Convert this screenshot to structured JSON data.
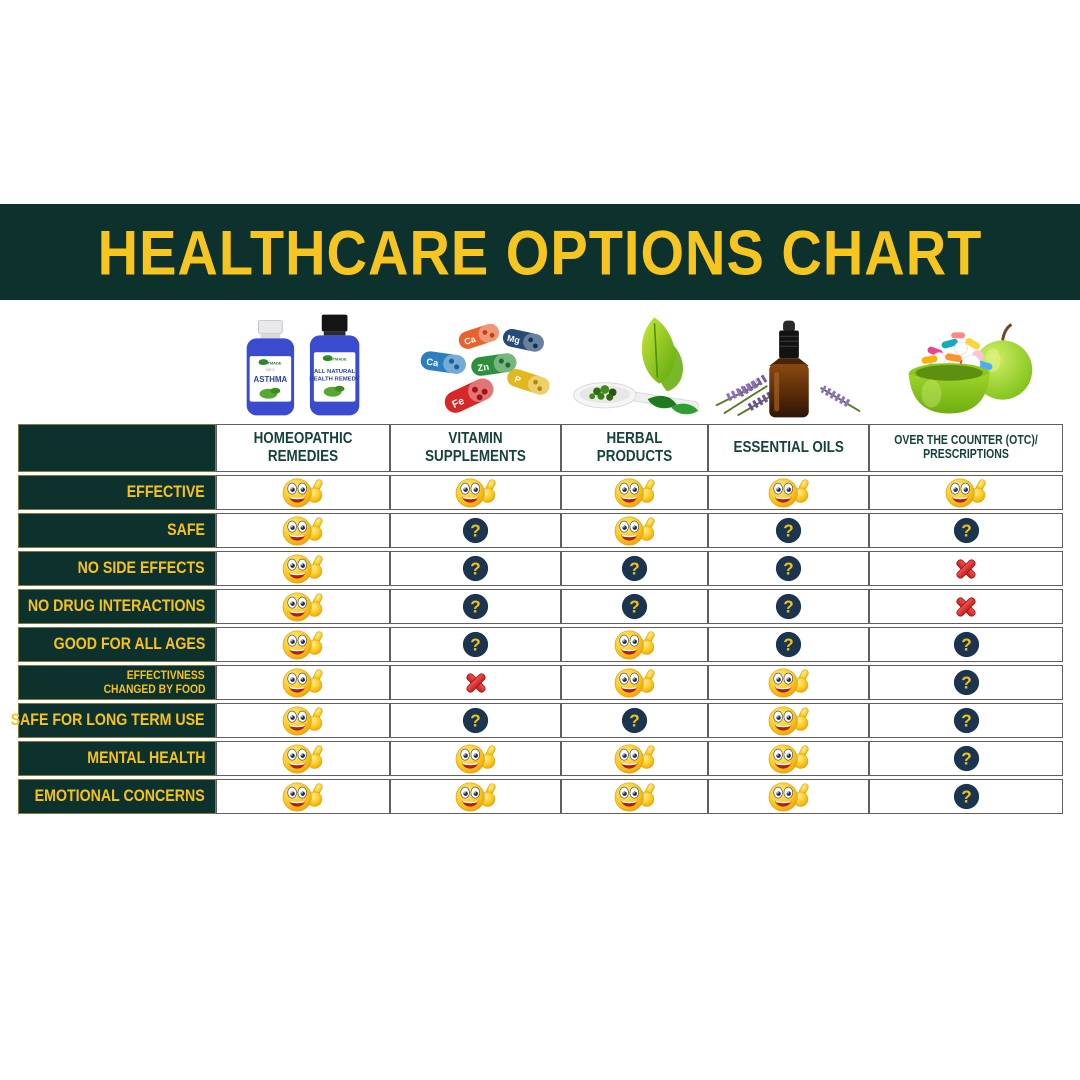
{
  "chart_data": {
    "type": "table",
    "title": "HEALTHCARE OPTIONS CHART",
    "columns": [
      {
        "key": "homeopathic-remedies",
        "label": "HOMEOPATHIC REMEDIES"
      },
      {
        "key": "vitamin-supplements",
        "label": "VITAMIN SUPPLEMENTS"
      },
      {
        "key": "herbal-products",
        "label": "HERBAL PRODUCTS"
      },
      {
        "key": "essential-oils",
        "label": "ESSENTIAL OILS"
      },
      {
        "key": "otc-prescriptions",
        "label": "OVER THE COUNTER (OTC)/ PRESCRIPTIONS"
      }
    ],
    "rows": [
      {
        "label": "EFFECTIVE",
        "values": [
          "yes",
          "yes",
          "yes",
          "yes",
          "yes"
        ]
      },
      {
        "label": "SAFE",
        "values": [
          "yes",
          "unknown",
          "yes",
          "unknown",
          "unknown"
        ]
      },
      {
        "label": "NO SIDE EFFECTS",
        "values": [
          "yes",
          "unknown",
          "unknown",
          "unknown",
          "no"
        ]
      },
      {
        "label": "NO DRUG INTERACTIONS",
        "values": [
          "yes",
          "unknown",
          "unknown",
          "unknown",
          "no"
        ]
      },
      {
        "label": "GOOD FOR ALL AGES",
        "values": [
          "yes",
          "unknown",
          "yes",
          "unknown",
          "unknown"
        ]
      },
      {
        "label": "EFFECTIVNESS CHANGED BY FOOD",
        "label_lines": [
          "EFFECTIVNESS",
          "CHANGED BY FOOD"
        ],
        "values": [
          "yes",
          "no",
          "yes",
          "yes",
          "unknown"
        ]
      },
      {
        "label": "SAFE FOR LONG TERM USE",
        "values": [
          "yes",
          "unknown",
          "unknown",
          "yes",
          "unknown"
        ]
      },
      {
        "label": "MENTAL HEALTH",
        "values": [
          "yes",
          "yes",
          "yes",
          "yes",
          "unknown"
        ]
      },
      {
        "label": "EMOTIONAL CONCERNS",
        "values": [
          "yes",
          "yes",
          "yes",
          "yes",
          "unknown"
        ]
      }
    ],
    "value_legend": {
      "yes": "thumbs-up smiley",
      "unknown": "question mark",
      "no": "red cross"
    }
  },
  "value_icons": {
    "yes": {
      "icon": "thumbs-up-smiley-icon",
      "symbol": "#sym-thumbs-up"
    },
    "unknown": {
      "icon": "question-mark-icon",
      "symbol": "#sym-question"
    },
    "no": {
      "icon": "red-cross-icon",
      "symbol": "#sym-cross"
    }
  },
  "images": {
    "homeopathic": {
      "bottle1_brand": "BESTMADE",
      "bottle1_sub": "NO 2",
      "bottle1_title": "ASTHMA",
      "bottle2_brand": "BESTMADE",
      "bottle2_line1": "ALL NATURAL",
      "bottle2_line2": "HEALTH REMEDY"
    },
    "vitamins": {
      "capsule_labels": [
        "Ca",
        "Mg",
        "Ca",
        "Zn",
        "P",
        "Fe"
      ]
    }
  },
  "colors": {
    "banner_green": "#0d322d",
    "title_yellow": "#f7c51f",
    "row_label_yellow": "#f6c21f",
    "header_text_green": "#16423c",
    "question_circle_navy": "#1b3450",
    "question_mark_yellow": "#f2c118",
    "cross_red": "#e03131",
    "smiley_yellow": "#fcc91d"
  }
}
